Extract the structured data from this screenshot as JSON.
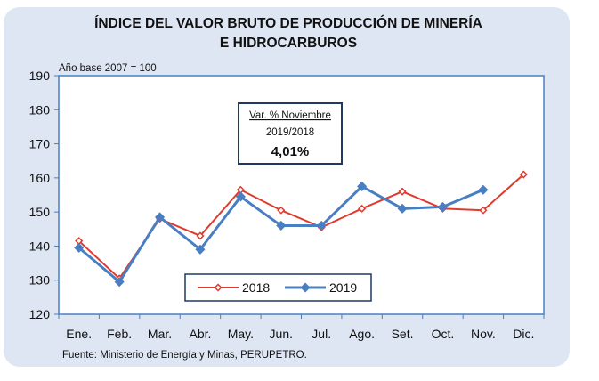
{
  "chart_data": {
    "type": "line",
    "title_line1": "ÍNDICE DEL VALOR BRUTO DE PRODUCCIÓN DE MINERÍA",
    "title_line2": "E HIDROCARBUROS",
    "base_note": "Año base  2007  =  100",
    "categories": [
      "Ene.",
      "Feb.",
      "Mar.",
      "Abr.",
      "May.",
      "Jun.",
      "Jul.",
      "Ago.",
      "Set.",
      "Oct.",
      "Nov.",
      "Dic."
    ],
    "y_ticks": [
      "120",
      "130",
      "140",
      "150",
      "160",
      "170",
      "180",
      "190"
    ],
    "ylim": [
      120,
      190
    ],
    "series": [
      {
        "name": "2018",
        "color": "#e03a2e",
        "marker": "open-diamond",
        "values": [
          141.5,
          130.5,
          148.0,
          143.0,
          156.5,
          150.5,
          145.5,
          151.0,
          156.0,
          151.0,
          150.5,
          161.0
        ]
      },
      {
        "name": "2019",
        "color": "#4a7ec2",
        "marker": "filled-diamond",
        "values": [
          139.5,
          129.5,
          148.5,
          139.0,
          154.5,
          146.0,
          146.0,
          157.5,
          151.0,
          151.5,
          156.5,
          null
        ]
      }
    ],
    "annotation": {
      "line1": "Var. % Noviembre",
      "line2": "2019/2018",
      "value": "4,01%"
    },
    "source": "Fuente: Ministerio de Energía y Minas, PERUPETRO."
  }
}
